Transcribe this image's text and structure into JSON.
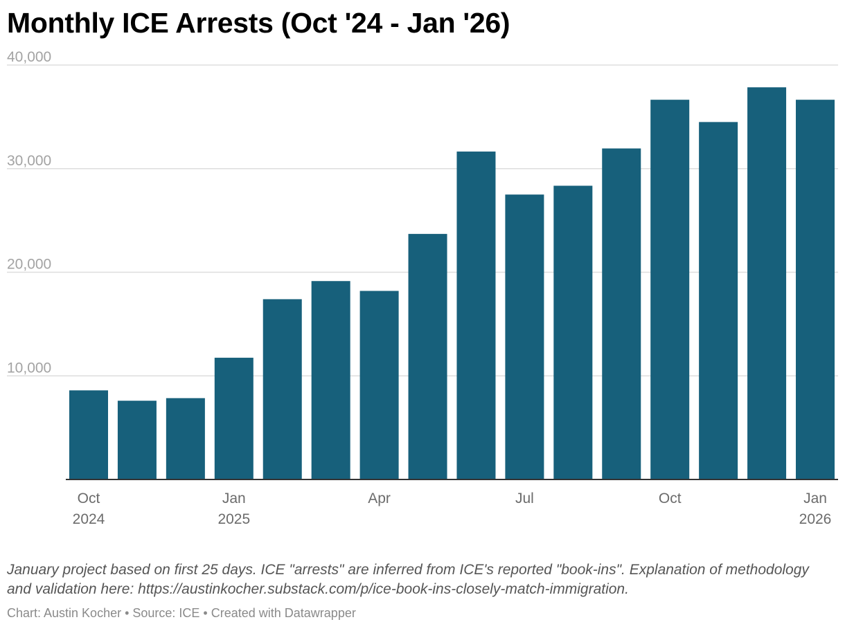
{
  "chart_data": {
    "type": "bar",
    "title": "Monthly ICE Arrests (Oct '24 - Jan '26)",
    "categories": [
      "Oct 2024",
      "Nov 2024",
      "Dec 2024",
      "Jan 2025",
      "Feb 2025",
      "Mar 2025",
      "Apr 2025",
      "May 2025",
      "Jun 2025",
      "Jul 2025",
      "Aug 2025",
      "Sep 2025",
      "Oct 2025",
      "Nov 2025",
      "Dec 2025",
      "Jan 2026"
    ],
    "values": [
      8600,
      7600,
      7850,
      11750,
      17400,
      19150,
      18200,
      23700,
      31650,
      27500,
      28350,
      31950,
      36650,
      34500,
      37850,
      36650
    ],
    "ylim": [
      0,
      40000
    ],
    "yticks": [
      10000,
      20000,
      30000,
      40000
    ],
    "ytick_labels": [
      "10,000",
      "20,000",
      "30,000",
      "40,000"
    ],
    "xtick_labels": [
      {
        "index": 0,
        "month": "Oct",
        "year": "2024"
      },
      {
        "index": 3,
        "month": "Jan",
        "year": "2025"
      },
      {
        "index": 6,
        "month": "Apr",
        "year": ""
      },
      {
        "index": 9,
        "month": "Jul",
        "year": ""
      },
      {
        "index": 12,
        "month": "Oct",
        "year": ""
      },
      {
        "index": 15,
        "month": "Jan",
        "year": "2026"
      }
    ],
    "xlabel": "",
    "ylabel": "",
    "grid": true,
    "bar_color": "#17607b"
  },
  "notes": "January project based on first 25 days. ICE \"arrests\" are inferred from ICE's reported \"book-ins\". Explanation of methodology and validation here: https://austinkocher.substack.com/p/ice-book-ins-closely-match-immigration.",
  "credit": "Chart: Austin Kocher • Source: ICE • Created with Datawrapper"
}
